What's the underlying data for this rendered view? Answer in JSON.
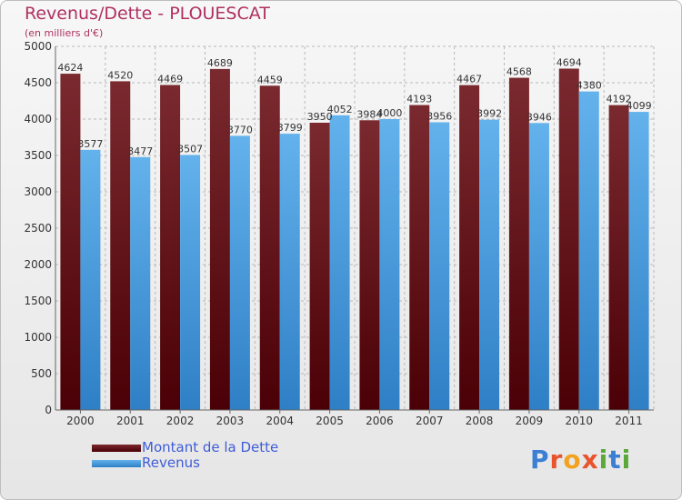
{
  "title": "Revenus/Dette - PLOUESCAT",
  "subtitle": "(en milliers d'€)",
  "logo": {
    "letters": [
      {
        "char": "P",
        "color": "#3b7fd4"
      },
      {
        "char": "r",
        "color": "#e8542e"
      },
      {
        "char": "o",
        "color": "#f2a21e"
      },
      {
        "char": "x",
        "color": "#e8542e"
      },
      {
        "char": "i",
        "color": "#5aa83a"
      },
      {
        "char": "t",
        "color": "#3b7fd4"
      },
      {
        "char": "i",
        "color": "#5aa83a"
      }
    ]
  },
  "colors": {
    "dette_top": "#7a2a2f",
    "dette_bottom": "#4a0006",
    "revenus_top": "#63b2ec",
    "revenus_bottom": "#2f7fc6",
    "grid": "#b8b8b8",
    "axis": "#666666",
    "text": "#333333"
  },
  "chart_data": {
    "type": "bar",
    "title": "Revenus/Dette - PLOUESCAT",
    "subtitle": "(en milliers d'€)",
    "xlabel": "",
    "ylabel": "",
    "categories": [
      "2000",
      "2001",
      "2002",
      "2003",
      "2004",
      "2005",
      "2006",
      "2007",
      "2008",
      "2009",
      "2010",
      "2011"
    ],
    "ylim": [
      0,
      5000
    ],
    "yticks": [
      0,
      500,
      1000,
      1500,
      2000,
      2500,
      3000,
      3500,
      4000,
      4500,
      5000
    ],
    "grid": true,
    "legend_position": "bottom-left",
    "series": [
      {
        "name": "Montant de la Dette",
        "values": [
          4624,
          4520,
          4469,
          4689,
          4459,
          3950,
          3984,
          4193,
          4467,
          4568,
          4694,
          4192
        ]
      },
      {
        "name": "Revenus",
        "values": [
          3577,
          3477,
          3507,
          3770,
          3799,
          4052,
          4000,
          3956,
          3992,
          3946,
          4380,
          4099
        ]
      }
    ]
  }
}
